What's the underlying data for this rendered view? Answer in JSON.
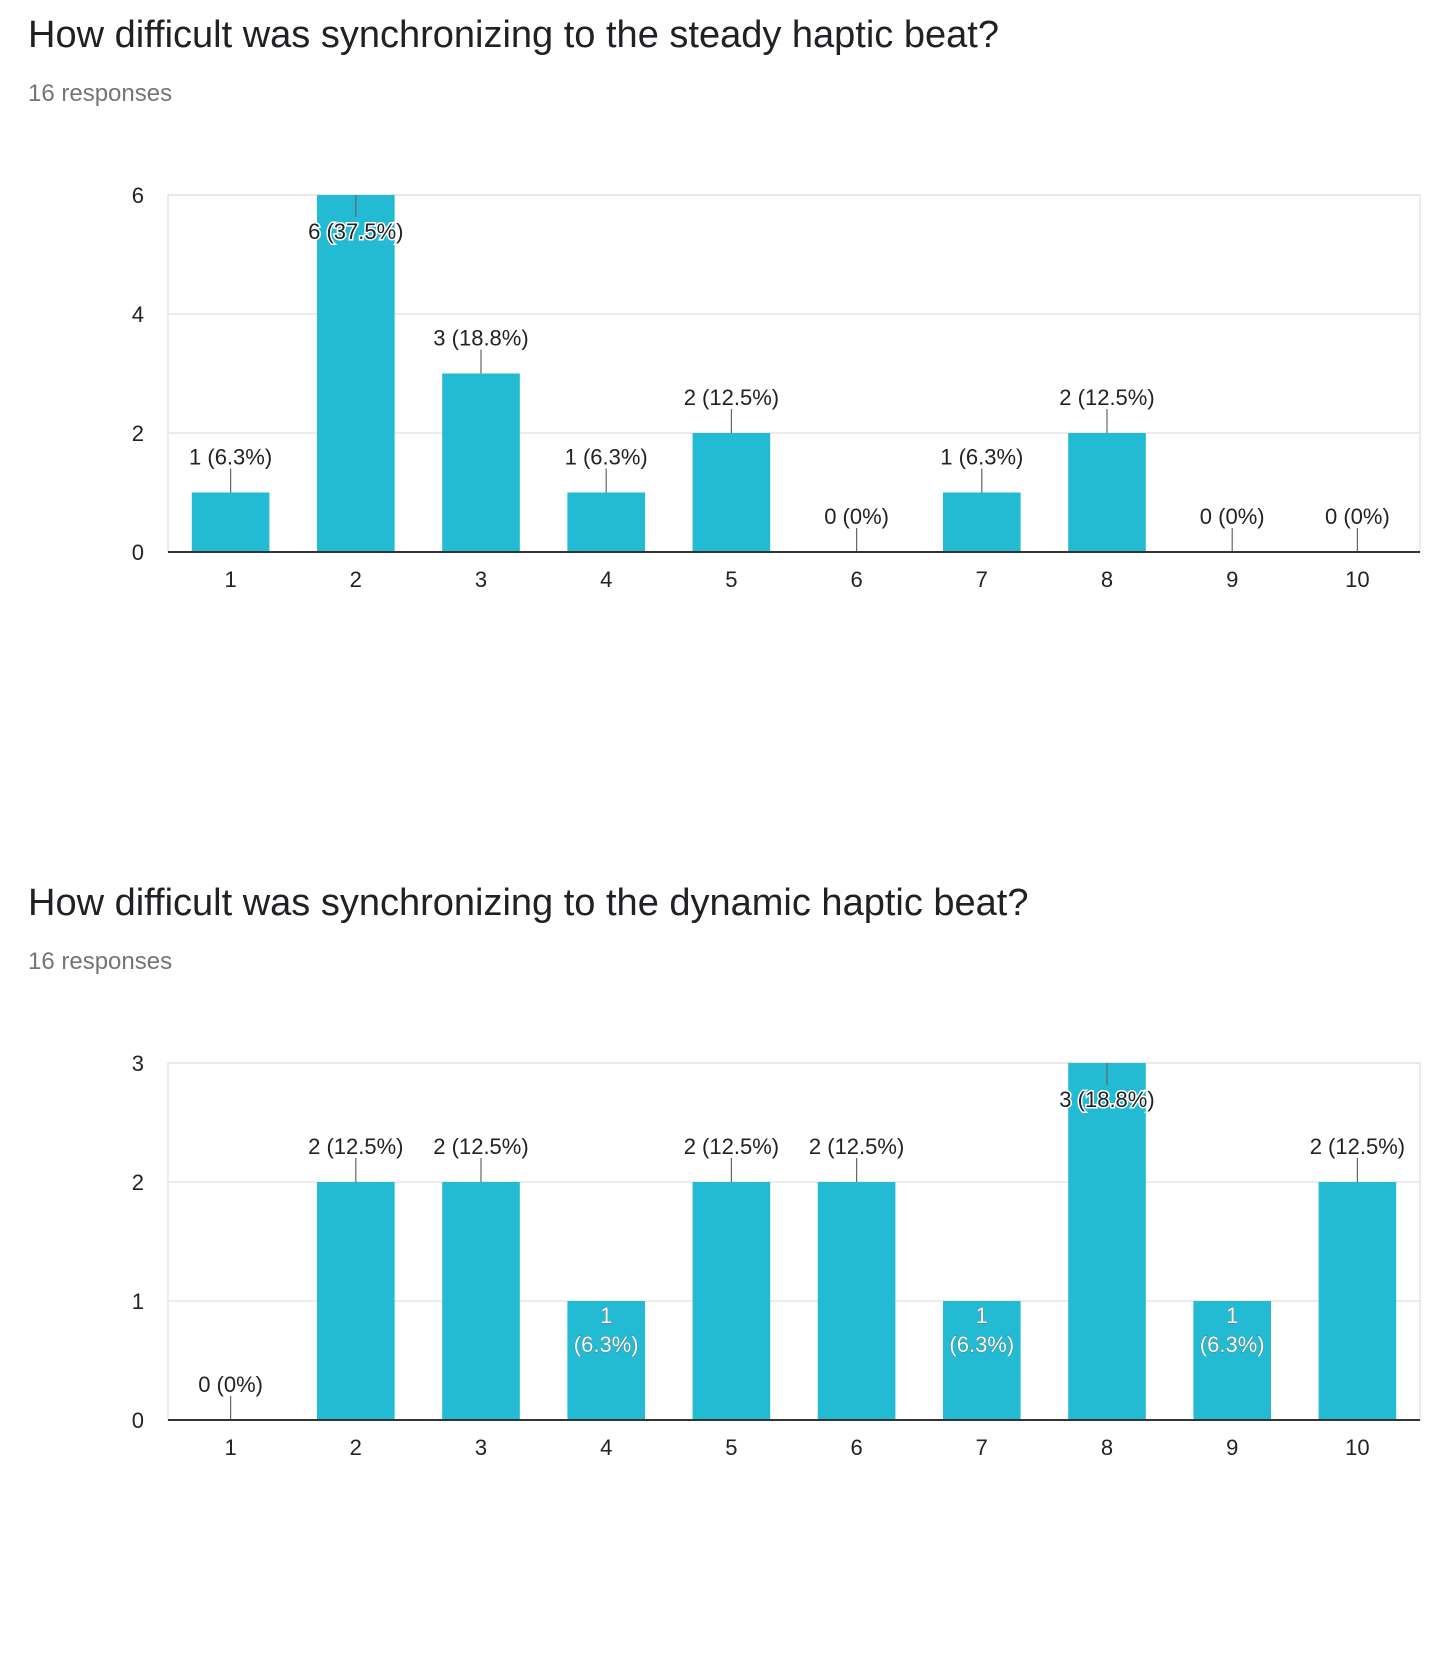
{
  "colors": {
    "bar": "#22bbd3",
    "grid": "#e6e6e6",
    "axis": "#333333",
    "text": "#222222"
  },
  "chart_data": [
    {
      "type": "bar",
      "title": "How difficult was synchronizing to the steady haptic beat?",
      "subtitle": "16 responses",
      "categories": [
        "1",
        "2",
        "3",
        "4",
        "5",
        "6",
        "7",
        "8",
        "9",
        "10"
      ],
      "values": [
        1,
        6,
        3,
        1,
        2,
        0,
        1,
        2,
        0,
        0
      ],
      "labels": [
        "1 (6.3%)",
        "6 (37.5%)",
        "3 (18.8%)",
        "1 (6.3%)",
        "2 (12.5%)",
        "0 (0%)",
        "1 (6.3%)",
        "2 (12.5%)",
        "0 (0%)",
        "0 (0%)"
      ],
      "ylim": [
        0,
        6
      ],
      "yticks": [
        "0",
        "2",
        "4",
        "6"
      ],
      "grid": true
    },
    {
      "type": "bar",
      "title": "How difficult was synchronizing to the dynamic haptic beat?",
      "subtitle": "16 responses",
      "categories": [
        "1",
        "2",
        "3",
        "4",
        "5",
        "6",
        "7",
        "8",
        "9",
        "10"
      ],
      "values": [
        0,
        2,
        2,
        1,
        2,
        2,
        1,
        3,
        1,
        2
      ],
      "labels": [
        "0 (0%)",
        "2 (12.5%)",
        "2 (12.5%)",
        "1 (6.3%)",
        "2 (12.5%)",
        "2 (12.5%)",
        "1 (6.3%)",
        "3 (18.8%)",
        "1 (6.3%)",
        "2 (12.5%)"
      ],
      "ylim": [
        0,
        3
      ],
      "yticks": [
        "0",
        "1",
        "2",
        "3"
      ],
      "grid": true
    }
  ]
}
